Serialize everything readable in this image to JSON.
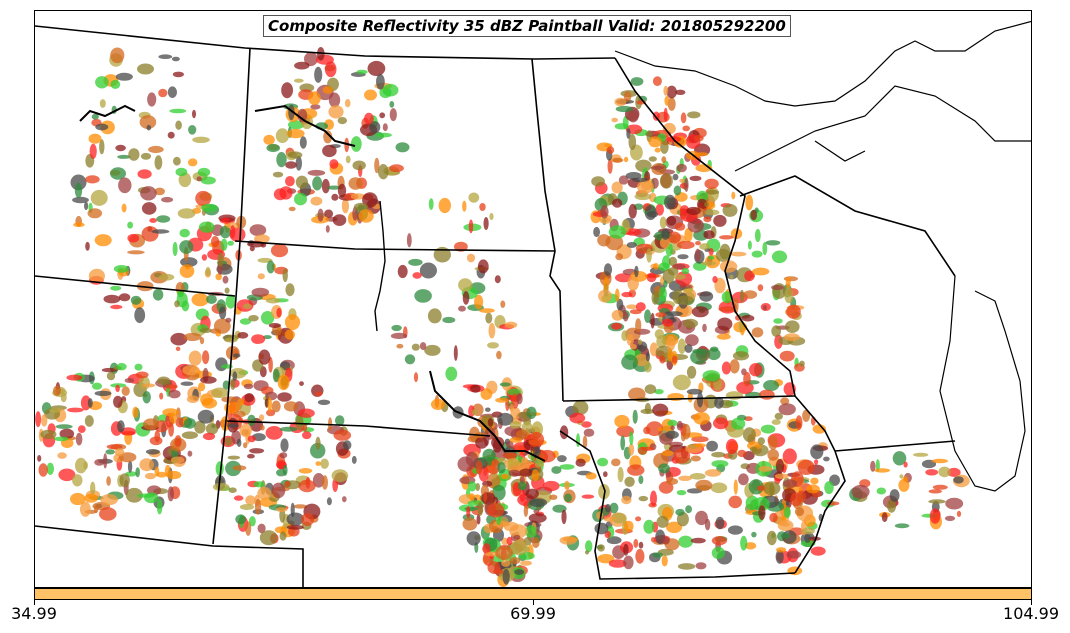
{
  "title": "Composite Reflectivity 35 dBZ Paintball Valid: 201805292200",
  "colorbar": {
    "color": "#ffc266",
    "ticks": [
      "34.99",
      "69.99",
      "104.99"
    ]
  },
  "member_colors": [
    "#ff2020",
    "#e8401a",
    "#ff8c00",
    "#f59b3c",
    "#32cd32",
    "#2e8b3e",
    "#8b1a1a",
    "#a04040",
    "#b5a642",
    "#8b7d2a",
    "#4a4a4a",
    "#d2691e"
  ],
  "boundary_color": "#000000"
}
